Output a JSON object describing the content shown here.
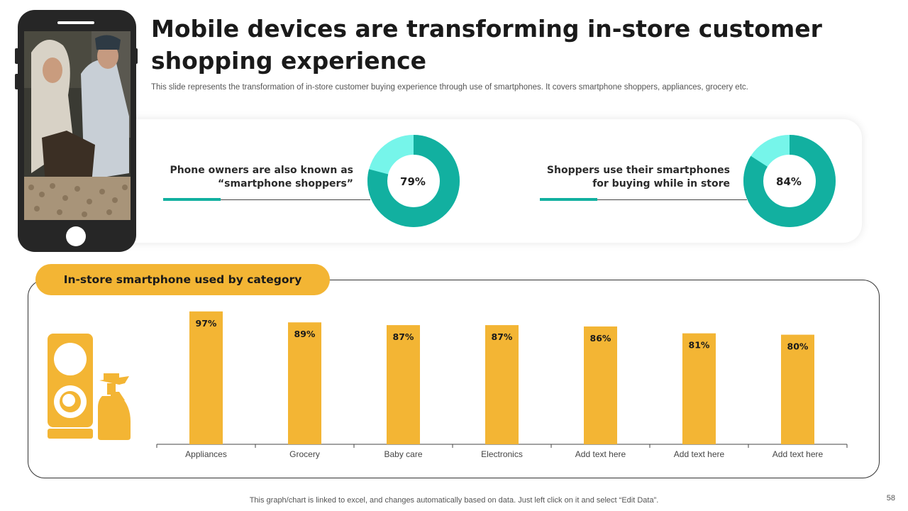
{
  "title": "Mobile devices are transforming in-store customer shopping experience",
  "subtitle": "This slide represents the transformation of in-store customer buying experience through use of smartphones. It covers smartphone shoppers, appliances, grocery etc.",
  "stats": [
    {
      "label_line1": "Phone owners are also known as",
      "label_line2": "“smartphone shoppers”",
      "percent_label": "79%",
      "value": 79
    },
    {
      "label_line1": "Shoppers use their smartphones",
      "label_line2": "for buying while in store",
      "percent_label": "84%",
      "value": 84
    }
  ],
  "chart_section_title": "In-store smartphone used by category",
  "chart_data": {
    "type": "bar",
    "title": "In-store smartphone used by category",
    "categories": [
      "Appliances",
      "Grocery",
      "Baby care",
      "Electronics",
      "Add text here",
      "Add text here",
      "Add text here"
    ],
    "values": [
      97,
      89,
      87,
      87,
      86,
      81,
      80
    ],
    "value_labels": [
      "97%",
      "89%",
      "87%",
      "87%",
      "86%",
      "81%",
      "80%"
    ],
    "xlabel": "",
    "ylabel": "",
    "ylim": [
      0,
      100
    ],
    "grid": false
  },
  "colors": {
    "accent_teal": "#12b0a0",
    "light_teal": "#76f5ea",
    "bar_yellow": "#f3b534"
  },
  "footer_note": "This graph/chart is linked to excel, and changes automatically based on data. Just left click on it and select “Edit Data”.",
  "page_number": "58"
}
